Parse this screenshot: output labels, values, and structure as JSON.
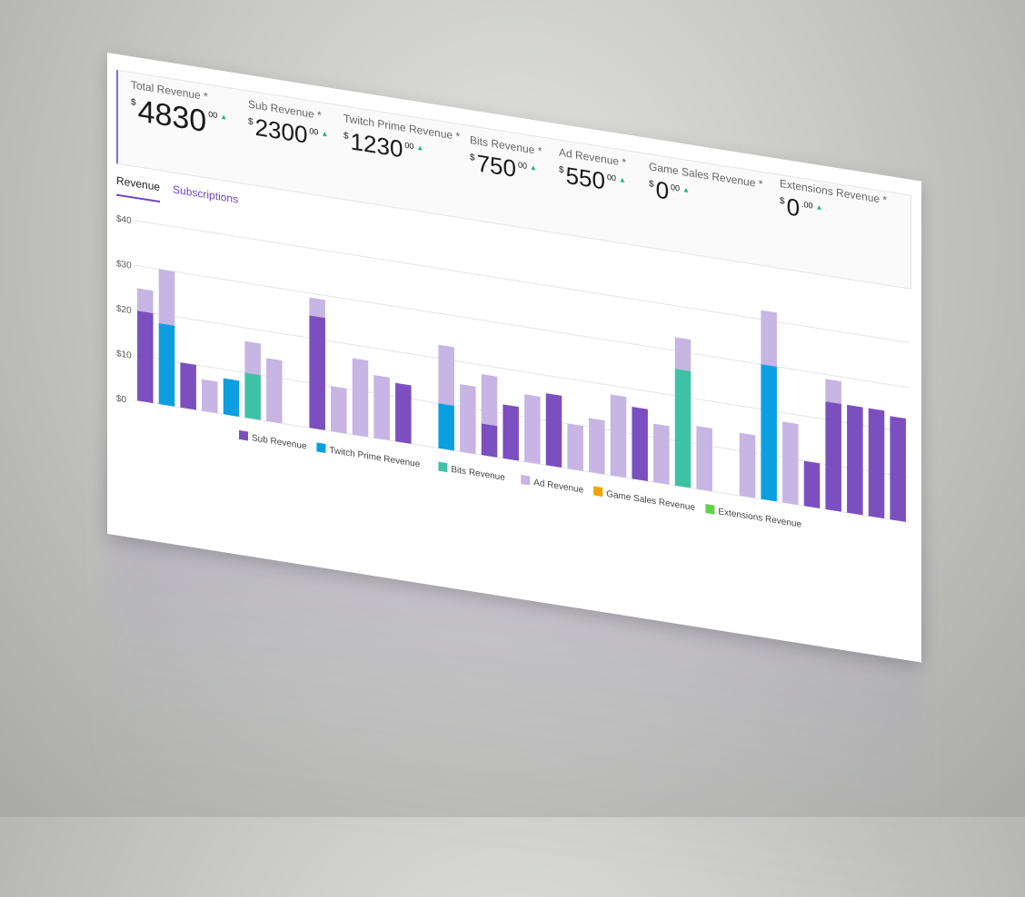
{
  "metrics": [
    {
      "label": "Total Revenue *",
      "currency": "$",
      "value": "4830",
      "cents": "00",
      "trend": "▲"
    },
    {
      "label": "Sub Revenue *",
      "currency": "$",
      "value": "2300",
      "cents": "00",
      "trend": "▲"
    },
    {
      "label": "Twitch Prime Revenue *",
      "currency": "$",
      "value": "1230",
      "cents": "00",
      "trend": "▲"
    },
    {
      "label": "Bits Revenue *",
      "currency": "$",
      "value": "750",
      "cents": "00",
      "trend": "▲"
    },
    {
      "label": "Ad Revenue *",
      "currency": "$",
      "value": "550",
      "cents": "00",
      "trend": "▲"
    },
    {
      "label": "Game Sales Revenue *",
      "currency": "$",
      "value": "0",
      "cents": "00",
      "trend": "▲"
    },
    {
      "label": "Extensions Revenue *",
      "currency": "$",
      "value": "0",
      "cents": ".00",
      "trend": "▲"
    }
  ],
  "tabs": {
    "revenue": "Revenue",
    "subscriptions": "Subscriptions"
  },
  "chart_data": {
    "type": "bar",
    "stacked": true,
    "ylim": [
      0,
      40
    ],
    "yticks": [
      "$40",
      "$30",
      "$20",
      "$10",
      "$0"
    ],
    "grid": true,
    "legend_position": "bottom",
    "series": [
      {
        "name": "Sub Revenue",
        "color": "#7b4fbf",
        "values": [
          20,
          0,
          10,
          0,
          0,
          0,
          0,
          0,
          25,
          0,
          0,
          0,
          13,
          0,
          0,
          0,
          7,
          12,
          0,
          16,
          0,
          0,
          0,
          16,
          0,
          0,
          0,
          0,
          0,
          0,
          0,
          10,
          24,
          24,
          24,
          23
        ]
      },
      {
        "name": "Twitch Prime Revenue",
        "color": "#0b9ee0",
        "values": [
          0,
          18,
          0,
          0,
          8,
          0,
          0,
          0,
          0,
          0,
          0,
          0,
          0,
          0,
          10,
          0,
          0,
          0,
          0,
          0,
          0,
          0,
          0,
          0,
          0,
          0,
          0,
          0,
          0,
          30,
          0,
          0,
          0,
          0,
          0,
          0
        ]
      },
      {
        "name": "Bits Revenue",
        "color": "#3fc1a7",
        "values": [
          0,
          0,
          0,
          0,
          0,
          10,
          0,
          0,
          0,
          0,
          0,
          0,
          0,
          0,
          0,
          0,
          0,
          0,
          0,
          0,
          0,
          0,
          0,
          0,
          0,
          26,
          0,
          0,
          0,
          0,
          0,
          0,
          0,
          0,
          0,
          0
        ]
      },
      {
        "name": "Ad Revenue",
        "color": "#c7b5e3",
        "values": [
          5,
          12,
          0,
          7,
          0,
          7,
          14,
          0,
          4,
          10,
          17,
          14,
          0,
          0,
          13,
          15,
          11,
          0,
          15,
          0,
          10,
          12,
          18,
          0,
          13,
          7,
          14,
          0,
          14,
          13,
          18,
          0,
          5,
          0,
          0,
          0
        ]
      },
      {
        "name": "Game Sales Revenue",
        "color": "#f0a30a",
        "values": [
          0,
          0,
          0,
          0,
          0,
          0,
          0,
          0,
          0,
          0,
          0,
          0,
          0,
          0,
          0,
          0,
          0,
          0,
          0,
          0,
          0,
          0,
          0,
          0,
          0,
          0,
          0,
          0,
          0,
          0,
          0,
          0,
          0,
          0,
          0,
          0
        ]
      },
      {
        "name": "Extensions Revenue",
        "color": "#63d14a",
        "values": [
          0,
          0,
          0,
          0,
          0,
          0,
          0,
          0,
          0,
          0,
          0,
          0,
          0,
          0,
          0,
          0,
          0,
          0,
          0,
          0,
          0,
          0,
          0,
          0,
          0,
          0,
          0,
          0,
          0,
          0,
          0,
          0,
          0,
          0,
          0,
          0
        ]
      }
    ]
  }
}
